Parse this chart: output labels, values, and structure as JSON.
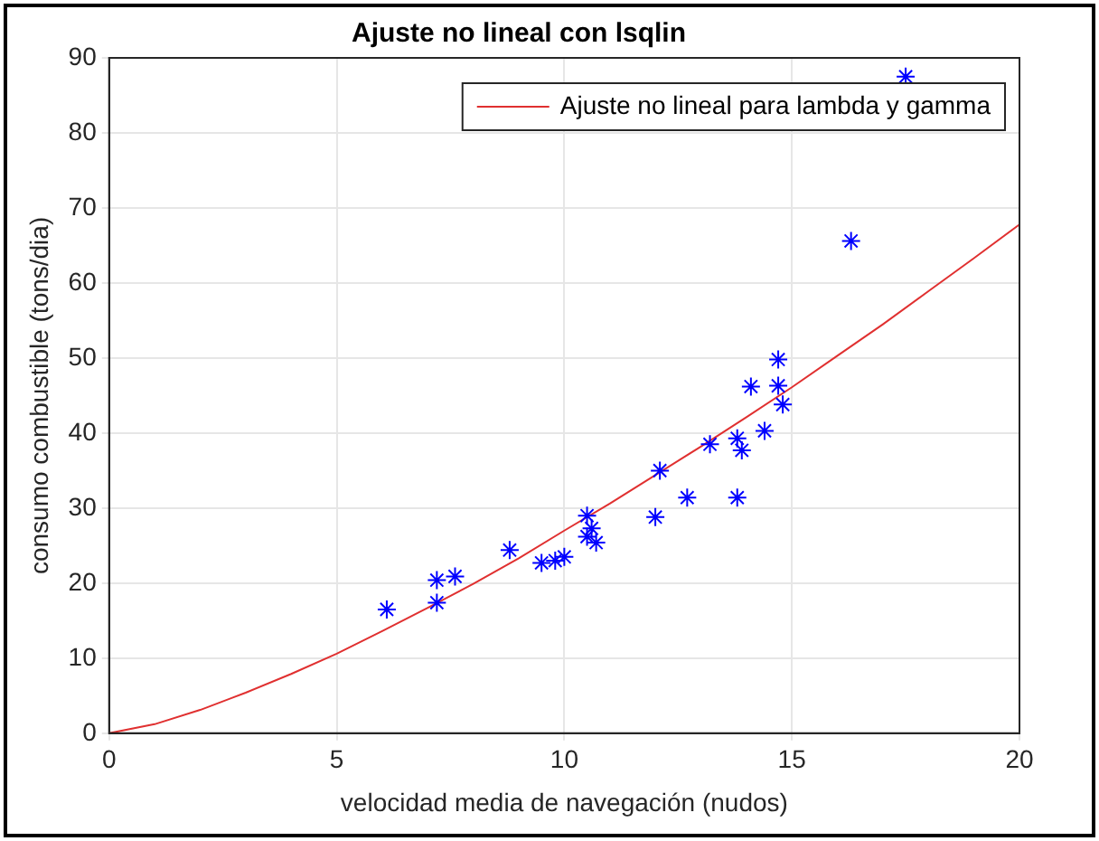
{
  "chart_data": {
    "type": "scatter",
    "title": "Ajuste no lineal con lsqlin",
    "xlabel": "velocidad media de navegación (nudos)",
    "ylabel": "consumo combustible (tons/dia)",
    "xlim": [
      0,
      20
    ],
    "xticks": [
      0,
      5,
      10,
      15,
      20
    ],
    "ylim": [
      0,
      90
    ],
    "yticks": [
      0,
      10,
      20,
      30,
      40,
      50,
      60,
      70,
      80,
      90
    ],
    "grid": true,
    "legend": "top right",
    "series": [
      {
        "color": "#0000ff",
        "marker": "cross",
        "x": [
          6.1,
          7.2,
          7.2,
          7.6,
          8.8,
          9.5,
          9.8,
          10,
          10.5,
          10.5,
          10.6,
          10.7,
          12,
          12.1,
          12.7,
          13.2,
          13.8,
          13.8,
          13.9,
          14.1,
          14.4,
          14.7,
          14.7,
          14.8,
          16.3,
          17.5
        ],
        "values": [
          16.5,
          20.4,
          17.4,
          20.9,
          24.4,
          22.7,
          23,
          23.5,
          29,
          26.2,
          27.3,
          25.4,
          28.8,
          35,
          31.4,
          38.5,
          39.3,
          31.4,
          37.7,
          46.2,
          40.3,
          49.8,
          46.3,
          43.8,
          65.6,
          87.5
        ]
      },
      {
        "type": "line",
        "name": "Ajuste no lineal para lambda y gamma",
        "color": "#e03030",
        "marker": "none",
        "line_style": "solid",
        "x": [
          0,
          1,
          2,
          3,
          4,
          5,
          6,
          7,
          8,
          9,
          10,
          11,
          12,
          13,
          14,
          15,
          16,
          17,
          18,
          19,
          20
        ],
        "values": [
          0,
          1.2,
          3.1,
          5.4,
          7.9,
          10.6,
          13.6,
          16.7,
          19.9,
          23.3,
          27,
          30.6,
          34.4,
          38.2,
          42.1,
          46.1,
          50.3,
          54.5,
          58.9,
          63.3,
          67.8
        ]
      }
    ]
  }
}
